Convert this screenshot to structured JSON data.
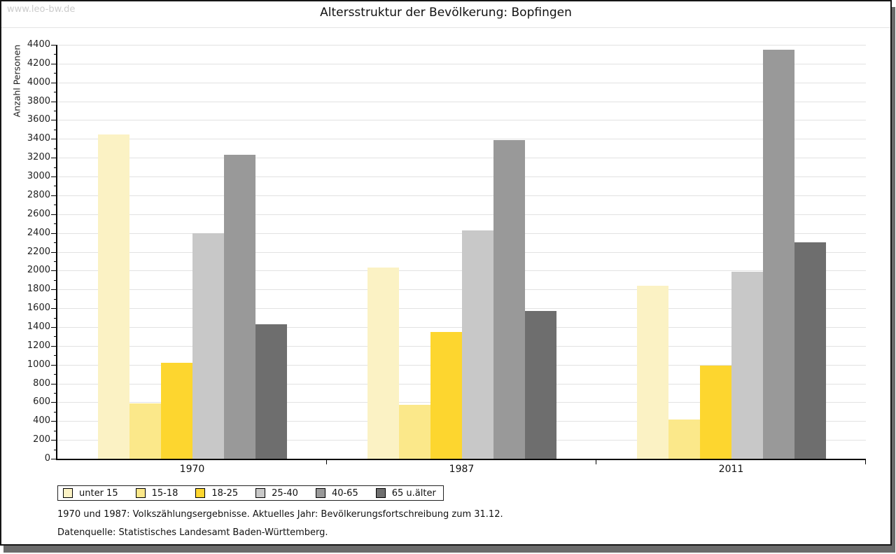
{
  "watermark": "www.leo-bw.de",
  "title": "Altersstruktur der Bevölkerung: Bopfingen",
  "chart_data": {
    "type": "bar",
    "title": "Altersstruktur der Bevölkerung: Bopfingen",
    "xlabel": "",
    "ylabel": "Anzahl Personen",
    "ylim": [
      0,
      4400
    ],
    "ytick_step": 200,
    "grid": true,
    "legend_position": "bottom",
    "categories": [
      "1970",
      "1987",
      "2011"
    ],
    "series": [
      {
        "name": "unter 15",
        "color": "#FBF2C4",
        "values": [
          3450,
          2030,
          1840
        ]
      },
      {
        "name": "15-18",
        "color": "#FBE88A",
        "values": [
          590,
          570,
          420
        ]
      },
      {
        "name": "18-25",
        "color": "#FDD62F",
        "values": [
          1020,
          1350,
          990
        ]
      },
      {
        "name": "25-40",
        "color": "#C8C8C8",
        "values": [
          2400,
          2430,
          1990
        ]
      },
      {
        "name": "40-65",
        "color": "#999999",
        "values": [
          3230,
          3390,
          4350
        ]
      },
      {
        "name": "65 u.älter",
        "color": "#6E6E6E",
        "values": [
          1430,
          1570,
          2300
        ]
      }
    ]
  },
  "footer": {
    "line1": "1970 und 1987: Volkszählungsergebnisse. Aktuelles Jahr: Bevölkerungsfortschreibung zum 31.12.",
    "line2": "Datenquelle: Statistisches Landesamt Baden-Württemberg."
  }
}
